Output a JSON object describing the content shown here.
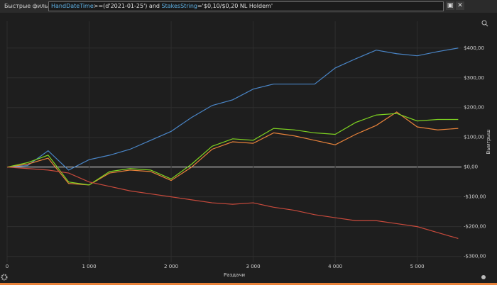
{
  "toolbar": {
    "label": "Быстрые фильт",
    "query": [
      {
        "text": "HandDateTime",
        "color": "#5fb3e8"
      },
      {
        "text": ">=(d'2021-01-25') and ",
        "color": "#e0e0e0"
      },
      {
        "text": "StakesString",
        "color": "#5fb3e8"
      },
      {
        "text": "='$0,10/$0,20 NL Holdem'",
        "color": "#e0e0e0"
      }
    ]
  },
  "chart_data": {
    "type": "line",
    "xlabel": "Раздачи",
    "ylabel": "Выигрыш",
    "x": [
      0,
      250,
      500,
      750,
      1000,
      1250,
      1500,
      1750,
      2000,
      2250,
      2500,
      2750,
      3000,
      3250,
      3500,
      3750,
      4000,
      4250,
      4500,
      4750,
      5000,
      5250,
      5500
    ],
    "series": [
      {
        "color": "#4a86c8",
        "values": [
          0,
          5,
          55,
          -10,
          25,
          40,
          60,
          90,
          120,
          167,
          207,
          226,
          262,
          279,
          279,
          279,
          333,
          364,
          393,
          381,
          374,
          388,
          400
        ]
      },
      {
        "color": "#e8823a",
        "values": [
          0,
          10,
          30,
          -55,
          -60,
          -20,
          -10,
          -15,
          -45,
          0,
          60,
          85,
          80,
          115,
          105,
          90,
          75,
          110,
          140,
          185,
          135,
          125,
          130
        ]
      },
      {
        "color": "#7ed321",
        "values": [
          0,
          15,
          40,
          -50,
          -60,
          -15,
          -5,
          -10,
          -40,
          10,
          70,
          95,
          90,
          130,
          125,
          115,
          110,
          150,
          175,
          180,
          155,
          160,
          160
        ]
      },
      {
        "color": "#c84a3c",
        "values": [
          0,
          -5,
          -10,
          -20,
          -50,
          -65,
          -80,
          -90,
          -100,
          -110,
          -120,
          -125,
          -120,
          -135,
          -145,
          -160,
          -170,
          -180,
          -180,
          -190,
          -200,
          -220,
          -240
        ]
      }
    ],
    "xlim": [
      0,
      5540
    ],
    "ylim": [
      -320,
      490
    ],
    "xticks": [
      0,
      {
        "value": 1000,
        "label": "1 000"
      },
      {
        "value": 2000,
        "label": "2 000"
      },
      {
        "value": 3000,
        "label": "3 000"
      },
      {
        "value": 4000,
        "label": "4 000"
      },
      {
        "value": 5000,
        "label": "5 000"
      }
    ],
    "yticks": [
      {
        "value": -300,
        "label": "-$300,00"
      },
      {
        "value": -200,
        "label": "-$200,00"
      },
      {
        "value": -100,
        "label": "-$100,00"
      },
      {
        "value": 0,
        "label": "$0,00"
      },
      {
        "value": 100,
        "label": "$100,00"
      },
      {
        "value": 200,
        "label": "$200,00"
      },
      {
        "value": 300,
        "label": "$300,00"
      },
      {
        "value": 400,
        "label": "$400,00"
      }
    ],
    "grid": true
  }
}
